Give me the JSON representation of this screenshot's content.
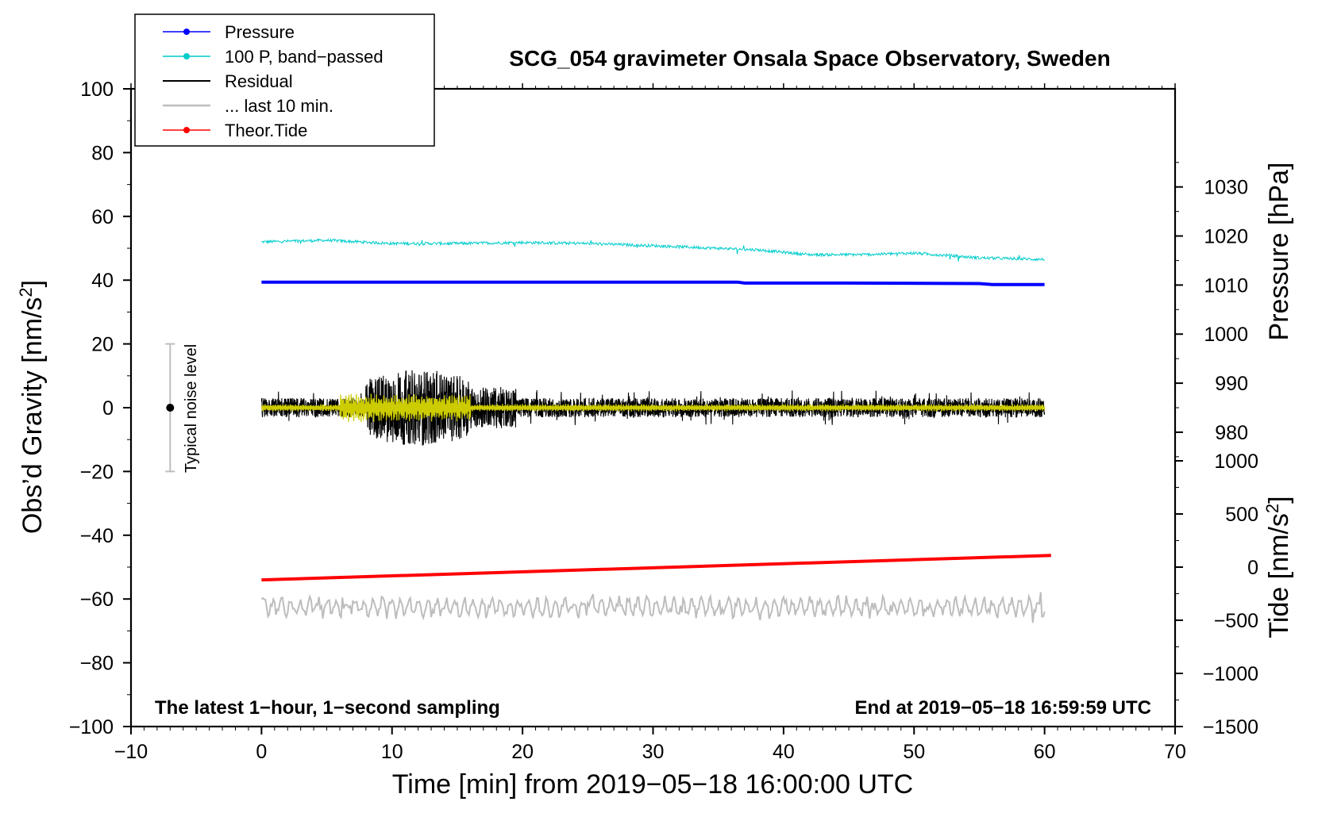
{
  "chart_data": {
    "type": "line",
    "title": "SCG_054 gravimeter Onsala Space Observatory, Sweden",
    "xlabel": "Time [min] from 2019−05−18 16:00:00 UTC",
    "ylabel_left": "Obs’d Gravity [nm/s²]",
    "ylabel_right_upper": "Pressure [hPa]",
    "ylabel_right_lower": "Tide [nm/s²]",
    "xlim": [
      -10,
      70
    ],
    "ylim": [
      -100,
      100
    ],
    "x_ticks": [
      "−10",
      "0",
      "10",
      "20",
      "30",
      "40",
      "50",
      "60",
      "70"
    ],
    "x_tick_values": [
      -10,
      0,
      10,
      20,
      30,
      40,
      50,
      60,
      70
    ],
    "y_ticks": [
      "100",
      "80",
      "60",
      "40",
      "20",
      "0",
      "−20",
      "−40",
      "−60",
      "−80",
      "−100"
    ],
    "y_tick_values": [
      100,
      80,
      60,
      40,
      20,
      0,
      -20,
      -40,
      -60,
      -80,
      -100
    ],
    "pressure_axis": {
      "ticks": [
        "1030",
        "1020",
        "1010",
        "1000",
        "990",
        "980"
      ],
      "values": [
        1030,
        1020,
        1010,
        1000,
        990,
        980
      ],
      "range": [
        920,
        1050
      ]
    },
    "tide_axis": {
      "ticks": [
        "1000",
        "500",
        "0",
        "−500",
        "−1000",
        "−1500"
      ],
      "values": [
        1000,
        500,
        0,
        -500,
        -1000,
        -1500
      ],
      "range": [
        -1500,
        4500
      ]
    },
    "legend": [
      "Pressure",
      "100 P, band−passed",
      "Residual",
      "... last 10 min.",
      "Theor.Tide"
    ],
    "series": [
      {
        "name": "Pressure",
        "color": "#0000ff",
        "axis": "pressure",
        "x": [
          0,
          10,
          20,
          30,
          36.5,
          37,
          45,
          55,
          56,
          60
        ],
        "values": [
          1010.6,
          1010.6,
          1010.6,
          1010.6,
          1010.6,
          1010.4,
          1010.4,
          1010.3,
          1010.1,
          1010.1
        ]
      },
      {
        "name": "100 P, band−passed",
        "color": "#00cccc",
        "axis": "left",
        "x": [
          0,
          5,
          10,
          15,
          20,
          25,
          30,
          35,
          38,
          42,
          46,
          50,
          55,
          60
        ],
        "values": [
          52,
          52.5,
          51.5,
          51.5,
          51.8,
          51.5,
          50.8,
          50,
          49.5,
          48,
          48,
          48.5,
          47,
          46.5
        ]
      },
      {
        "name": "Residual",
        "color": "#000000",
        "axis": "left",
        "x_range": [
          0,
          60
        ],
        "values_range": [
          -14,
          15
        ]
      },
      {
        "name": "... last 10 min.",
        "color": "#bdbdbd",
        "axis": "left",
        "x_range": [
          0,
          60
        ],
        "values_range": [
          -68,
          -57
        ]
      },
      {
        "name": "Theor.Tide",
        "color": "#ff0000",
        "axis": "tide",
        "x": [
          0,
          60.5
        ],
        "values": [
          -120,
          110
        ]
      }
    ],
    "noise_level": {
      "label": "Typical noise level",
      "x": -7,
      "center": 0,
      "range": [
        -20,
        20
      ]
    },
    "footer_left": "The latest 1−hour, 1−second sampling",
    "footer_right": "End at 2019−05−18 16:59:59 UTC"
  }
}
